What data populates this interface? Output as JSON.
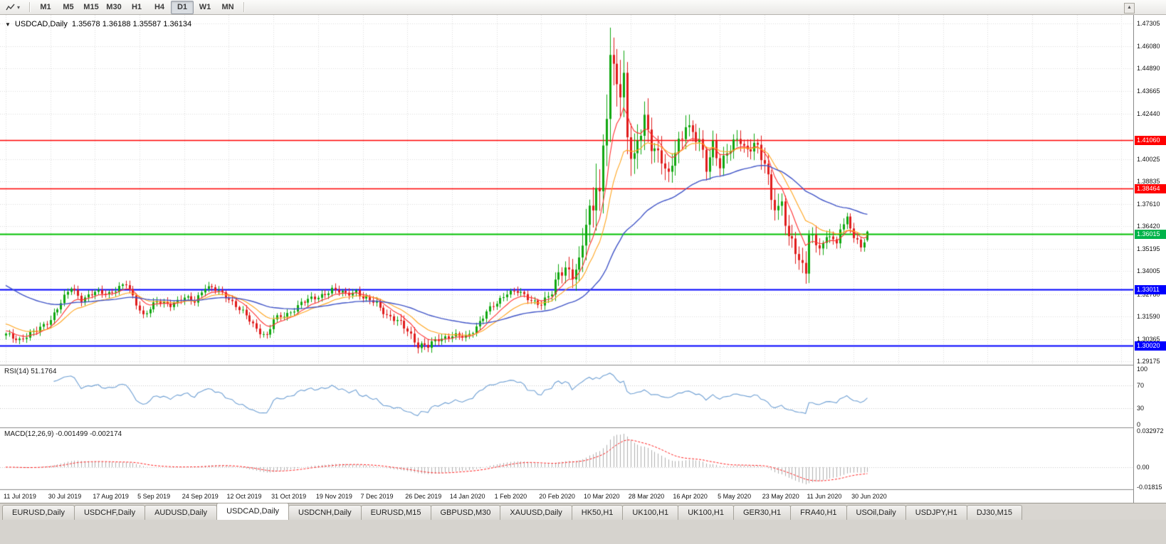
{
  "toolbar": {
    "chart_tool_icon": "line-chart-icon",
    "dropdown_icon": "chevron-down",
    "timeframes": [
      "M1",
      "M5",
      "M15",
      "M30",
      "H1",
      "H4",
      "D1",
      "W1",
      "MN"
    ],
    "active_timeframe": "D1",
    "scroll_up_icon": "up-arrow"
  },
  "chart_header": {
    "collapse_icon": "down-triangle",
    "symbol": "USDCAD,Daily",
    "ohlc_text": "1.35678 1.36188 1.35587 1.36134"
  },
  "chart_data": {
    "type": "candlestick",
    "title": "USDCAD,Daily",
    "timeframe": "Daily",
    "candles_count": 252,
    "last_candle": {
      "o": 1.35678,
      "h": 1.36188,
      "l": 1.35587,
      "c": 1.36134
    },
    "x_axis": {
      "labels": [
        {
          "text": "11 Jul 2019",
          "day": 0
        },
        {
          "text": "30 Jul 2019",
          "day": 13
        },
        {
          "text": "17 Aug 2019",
          "day": 26
        },
        {
          "text": "5 Sep 2019",
          "day": 39
        },
        {
          "text": "24 Sep 2019",
          "day": 52
        },
        {
          "text": "12 Oct 2019",
          "day": 65
        },
        {
          "text": "31 Oct 2019",
          "day": 78
        },
        {
          "text": "19 Nov 2019",
          "day": 91
        },
        {
          "text": "7 Dec 2019",
          "day": 104
        },
        {
          "text": "26 Dec 2019",
          "day": 117
        },
        {
          "text": "14 Jan 2020",
          "day": 130
        },
        {
          "text": "1 Feb 2020",
          "day": 143
        },
        {
          "text": "20 Feb 2020",
          "day": 156
        },
        {
          "text": "10 Mar 2020",
          "day": 169
        },
        {
          "text": "28 Mar 2020",
          "day": 182
        },
        {
          "text": "16 Apr 2020",
          "day": 195
        },
        {
          "text": "5 May 2020",
          "day": 208
        },
        {
          "text": "23 May 2020",
          "day": 221
        },
        {
          "text": "11 Jun 2020",
          "day": 234
        },
        {
          "text": "30 Jun 2020",
          "day": 247
        }
      ]
    },
    "y_axis": {
      "range": [
        1.29175,
        1.47305
      ],
      "ticks": [
        {
          "text": "1.47305",
          "value": 1.47305
        },
        {
          "text": "1.46080",
          "value": 1.4608
        },
        {
          "text": "1.44890",
          "value": 1.4489
        },
        {
          "text": "1.43665",
          "value": 1.43665
        },
        {
          "text": "1.42440",
          "value": 1.4244
        },
        {
          "text": "1.40025",
          "value": 1.40025
        },
        {
          "text": "1.38835",
          "value": 1.38835
        },
        {
          "text": "1.37610",
          "value": 1.3761
        },
        {
          "text": "1.36420",
          "value": 1.3642
        },
        {
          "text": "1.35195",
          "value": 1.35195
        },
        {
          "text": "1.34005",
          "value": 1.34005
        },
        {
          "text": "1.32780",
          "value": 1.3278
        },
        {
          "text": "1.31590",
          "value": 1.3159
        },
        {
          "text": "1.30365",
          "value": 1.30365
        },
        {
          "text": "1.29175",
          "value": 1.29175
        }
      ],
      "badges": [
        {
          "text": "1.41060",
          "value": 1.4106,
          "color": "#ff0000"
        },
        {
          "text": "1.38464",
          "value": 1.38464,
          "color": "#ff0000"
        },
        {
          "text": "1.36015",
          "value": 1.36015,
          "color": "#00b44a"
        },
        {
          "text": "1.33011",
          "value": 1.33011,
          "color": "#0000ff"
        },
        {
          "text": "1.30020",
          "value": 1.3002,
          "color": "#0000ff"
        }
      ]
    },
    "horizontal_lines": [
      {
        "value": 1.4106,
        "color": "#ff0000",
        "width": 1.5
      },
      {
        "value": 1.38464,
        "color": "#ff0000",
        "width": 1.5
      },
      {
        "value": 1.36015,
        "color": "#00c000",
        "width": 2
      },
      {
        "value": 1.33011,
        "color": "#0000ff",
        "width": 2
      },
      {
        "value": 1.3002,
        "color": "#0000ff",
        "width": 2
      }
    ],
    "moving_averages": [
      {
        "type": "ema",
        "period": 8,
        "color": "#ff3232",
        "seed": 1.3085
      },
      {
        "type": "ema",
        "period": 16,
        "color": "#ffa51e",
        "seed": 1.3125
      },
      {
        "type": "ema",
        "period": 50,
        "color": "#4256c8",
        "seed": 1.3335
      }
    ],
    "colors": {
      "bull": "#10a810",
      "bear": "#e01c1c",
      "grid": "#dcdcdc",
      "divider": "#8a8a8a",
      "background": "#ffffff"
    },
    "close_anchors": [
      [
        0,
        1.306
      ],
      [
        4,
        1.3035
      ],
      [
        9,
        1.308
      ],
      [
        13,
        1.3145
      ],
      [
        16,
        1.323
      ],
      [
        19,
        1.3315
      ],
      [
        22,
        1.325
      ],
      [
        26,
        1.3285
      ],
      [
        30,
        1.3285
      ],
      [
        35,
        1.333
      ],
      [
        38,
        1.323
      ],
      [
        40,
        1.3165
      ],
      [
        44,
        1.3235
      ],
      [
        48,
        1.3225
      ],
      [
        52,
        1.3255
      ],
      [
        55,
        1.324
      ],
      [
        58,
        1.332
      ],
      [
        61,
        1.33
      ],
      [
        65,
        1.3255
      ],
      [
        69,
        1.318
      ],
      [
        73,
        1.309
      ],
      [
        76,
        1.3055
      ],
      [
        78,
        1.314
      ],
      [
        82,
        1.317
      ],
      [
        86,
        1.323
      ],
      [
        91,
        1.3265
      ],
      [
        95,
        1.33
      ],
      [
        99,
        1.328
      ],
      [
        102,
        1.3295
      ],
      [
        104,
        1.3255
      ],
      [
        108,
        1.323
      ],
      [
        111,
        1.3165
      ],
      [
        114,
        1.313
      ],
      [
        117,
        1.3085
      ],
      [
        120,
        1.3005
      ],
      [
        123,
        1.2995
      ],
      [
        126,
        1.304
      ],
      [
        130,
        1.3055
      ],
      [
        134,
        1.3045
      ],
      [
        137,
        1.3105
      ],
      [
        140,
        1.318
      ],
      [
        143,
        1.323
      ],
      [
        146,
        1.329
      ],
      [
        149,
        1.329
      ],
      [
        152,
        1.3255
      ],
      [
        156,
        1.3225
      ],
      [
        159,
        1.328
      ],
      [
        161,
        1.339
      ],
      [
        163,
        1.3425
      ],
      [
        165,
        1.3385
      ],
      [
        167,
        1.342
      ],
      [
        169,
        1.366
      ],
      [
        171,
        1.376
      ],
      [
        172,
        1.393
      ],
      [
        173,
        1.381
      ],
      [
        174,
        1.406
      ],
      [
        175,
        1.426
      ],
      [
        176,
        1.45
      ],
      [
        177,
        1.443
      ],
      [
        178,
        1.4445
      ],
      [
        179,
        1.435
      ],
      [
        180,
        1.444
      ],
      [
        181,
        1.418
      ],
      [
        182,
        1.405
      ],
      [
        183,
        1.399
      ],
      [
        184,
        1.409
      ],
      [
        186,
        1.419
      ],
      [
        188,
        1.409
      ],
      [
        191,
        1.402
      ],
      [
        193,
        1.389
      ],
      [
        195,
        1.404
      ],
      [
        197,
        1.412
      ],
      [
        198,
        1.4215
      ],
      [
        200,
        1.4145
      ],
      [
        202,
        1.409
      ],
      [
        204,
        1.3945
      ],
      [
        206,
        1.4085
      ],
      [
        208,
        1.398
      ],
      [
        210,
        1.403
      ],
      [
        212,
        1.408
      ],
      [
        214,
        1.4105
      ],
      [
        216,
        1.405
      ],
      [
        218,
        1.41
      ],
      [
        220,
        1.3995
      ],
      [
        221,
        1.398
      ],
      [
        223,
        1.3785
      ],
      [
        225,
        1.375
      ],
      [
        226,
        1.3775
      ],
      [
        228,
        1.3575
      ],
      [
        230,
        1.35
      ],
      [
        232,
        1.342
      ],
      [
        233,
        1.3415
      ],
      [
        234,
        1.363
      ],
      [
        236,
        1.354
      ],
      [
        238,
        1.353
      ],
      [
        240,
        1.36
      ],
      [
        242,
        1.3545
      ],
      [
        243,
        1.3645
      ],
      [
        245,
        1.368
      ],
      [
        247,
        1.358
      ],
      [
        249,
        1.3525
      ],
      [
        250,
        1.357
      ],
      [
        251,
        1.36134
      ]
    ],
    "volatility_anchors": [
      [
        0,
        0.0035
      ],
      [
        110,
        0.0035
      ],
      [
        117,
        0.005
      ],
      [
        124,
        0.0045
      ],
      [
        130,
        0.0035
      ],
      [
        155,
        0.0035
      ],
      [
        160,
        0.006
      ],
      [
        165,
        0.009
      ],
      [
        169,
        0.015
      ],
      [
        173,
        0.02
      ],
      [
        177,
        0.022
      ],
      [
        182,
        0.016
      ],
      [
        188,
        0.012
      ],
      [
        195,
        0.01
      ],
      [
        205,
        0.008
      ],
      [
        215,
        0.007
      ],
      [
        222,
        0.01
      ],
      [
        228,
        0.009
      ],
      [
        233,
        0.01
      ],
      [
        236,
        0.007
      ],
      [
        242,
        0.005
      ],
      [
        251,
        0.004
      ]
    ]
  },
  "indicators": {
    "rsi": {
      "name": "RSI(14)",
      "current_value": "51.1764",
      "period": 14,
      "color": "#6fa0d4",
      "scale": {
        "max": 100,
        "min": 0
      },
      "ticks": [
        {
          "text": "100",
          "value": 100
        },
        {
          "text": "70",
          "value": 70
        },
        {
          "text": "30",
          "value": 30
        },
        {
          "text": "0",
          "value": 0
        }
      ],
      "level_lines": [
        70,
        30
      ]
    },
    "macd": {
      "name": "MACD(12,26,9)",
      "current_values": "-0.001499 -0.002174",
      "fast": 12,
      "slow": 26,
      "signal": 9,
      "histogram_color": "#b0b0b0",
      "signal_color": "#ff2222",
      "scale": {
        "max": 0.032972,
        "min": -0.01815
      },
      "ticks": [
        {
          "text": "0.032972",
          "value": 0.032972
        },
        {
          "text": "0.00",
          "value": 0
        },
        {
          "text": "-0.01815",
          "value": -0.01815
        }
      ]
    }
  },
  "tabs": {
    "items": [
      "EURUSD,Daily",
      "USDCHF,Daily",
      "AUDUSD,Daily",
      "USDCAD,Daily",
      "USDCNH,Daily",
      "EURUSD,M15",
      "GBPUSD,M30",
      "XAUUSD,Daily",
      "HK50,H1",
      "UK100,H1",
      "UK100,H1",
      "GER30,H1",
      "FRA40,H1",
      "USOil,Daily",
      "USDJPY,H1",
      "DJ30,M15"
    ],
    "active_index": 3
  }
}
